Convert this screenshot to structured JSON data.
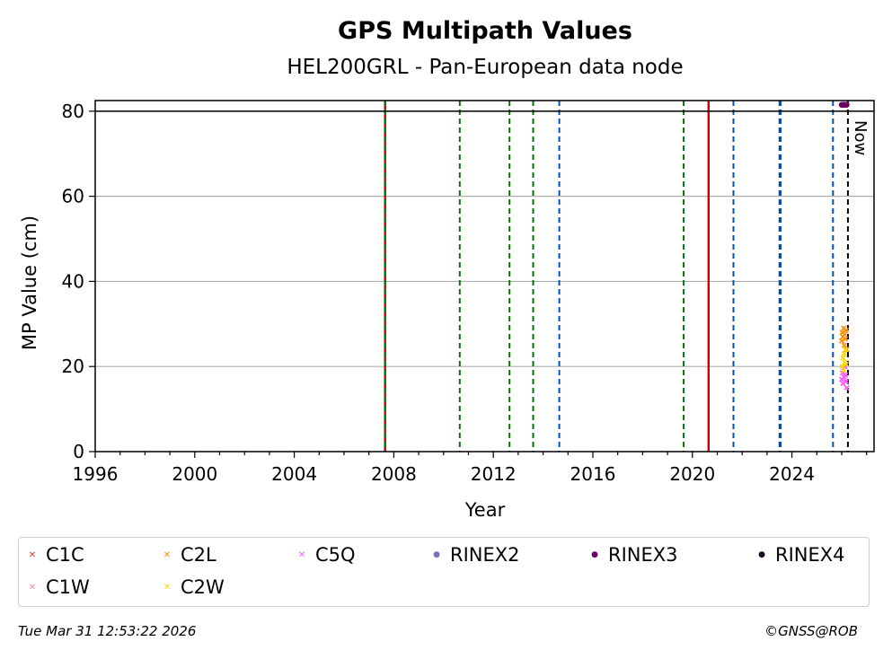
{
  "chart_data": {
    "type": "scatter",
    "title": "GPS Multipath Values",
    "subtitle": "HEL200GRL - Pan-European data node",
    "xlabel": "Year",
    "ylabel": "MP Value (cm)",
    "xlim": [
      1996,
      2027.3
    ],
    "ylim": [
      0,
      82.5
    ],
    "x_ticks": [
      1996,
      2000,
      2004,
      2008,
      2012,
      2016,
      2020,
      2024
    ],
    "y_ticks": [
      0,
      20,
      40,
      60,
      80
    ],
    "grid": "horizontal",
    "threshold_line": 80,
    "now_label": "Now",
    "now_x": 2026.25,
    "event_lines": [
      {
        "x": 2007.65,
        "style": "solid",
        "color": "#cc0000"
      },
      {
        "x": 2007.65,
        "style": "dashed",
        "color": "#007700"
      },
      {
        "x": 2010.65,
        "style": "dashed",
        "color": "#007700"
      },
      {
        "x": 2012.65,
        "style": "dashed",
        "color": "#007700"
      },
      {
        "x": 2013.6,
        "style": "dashed",
        "color": "#007700"
      },
      {
        "x": 2014.65,
        "style": "dashed",
        "color": "#0055aa"
      },
      {
        "x": 2019.65,
        "style": "dashed",
        "color": "#007700"
      },
      {
        "x": 2020.65,
        "style": "solid",
        "color": "#cc0000"
      },
      {
        "x": 2021.65,
        "style": "dashed",
        "color": "#0055aa"
      },
      {
        "x": 2023.5,
        "style": "dashed",
        "color": "#0055aa"
      },
      {
        "x": 2023.55,
        "style": "dashed",
        "color": "#0055aa"
      },
      {
        "x": 2025.65,
        "style": "dashed",
        "color": "#0055aa"
      }
    ],
    "series": [
      {
        "name": "C1C",
        "marker": "x",
        "color": "#e8352e",
        "points": []
      },
      {
        "name": "C2L",
        "marker": "x",
        "color": "#ff8c00",
        "points": [
          [
            2026.0,
            26
          ],
          [
            2026.02,
            28
          ],
          [
            2026.05,
            27
          ],
          [
            2026.08,
            29
          ],
          [
            2026.1,
            25
          ],
          [
            2026.12,
            27.5
          ],
          [
            2026.15,
            26.5
          ],
          [
            2026.18,
            28.5
          ],
          [
            2026.2,
            24
          ]
        ]
      },
      {
        "name": "C5Q",
        "marker": "x",
        "color": "#ff55ff",
        "points": [
          [
            2026.0,
            17
          ],
          [
            2026.03,
            18.5
          ],
          [
            2026.05,
            16
          ],
          [
            2026.08,
            19
          ],
          [
            2026.1,
            17.5
          ],
          [
            2026.13,
            20
          ],
          [
            2026.15,
            18
          ],
          [
            2026.18,
            16.5
          ],
          [
            2026.2,
            15
          ]
        ]
      },
      {
        "name": "RINEX2",
        "marker": "dot",
        "color": "#7b6fb5",
        "points": []
      },
      {
        "name": "RINEX3",
        "marker": "dot",
        "color": "#6a0060",
        "points": [
          [
            2026.0,
            81.5
          ],
          [
            2026.05,
            81.5
          ],
          [
            2026.1,
            81.5
          ],
          [
            2026.15,
            81.5
          ],
          [
            2026.2,
            81.5
          ]
        ]
      },
      {
        "name": "RINEX4",
        "marker": "dot",
        "color": "#1a0020",
        "points": []
      },
      {
        "name": "C1W",
        "marker": "x",
        "color": "#f08a8a",
        "points": []
      },
      {
        "name": "C2W",
        "marker": "x",
        "color": "#ffd700",
        "points": [
          [
            2026.02,
            20
          ],
          [
            2026.05,
            22
          ],
          [
            2026.08,
            19
          ],
          [
            2026.1,
            23
          ],
          [
            2026.12,
            21
          ],
          [
            2026.15,
            24
          ],
          [
            2026.18,
            20.5
          ]
        ]
      }
    ]
  },
  "footer": {
    "timestamp": "Tue Mar 31 12:53:22 2026",
    "copyright": "©GNSS@ROB"
  }
}
